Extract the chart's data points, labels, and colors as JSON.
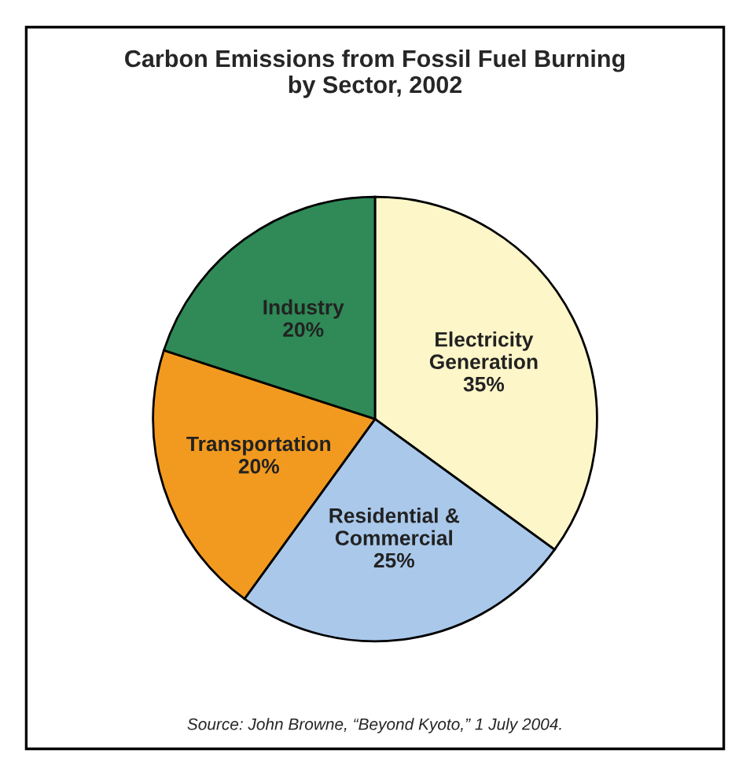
{
  "chart_data": {
    "type": "pie",
    "title": "Carbon Emissions from Fossil Fuel Burning\nby Sector, 2002",
    "categories": [
      "Electricity Generation",
      "Residential & Commercial",
      "Transportation",
      "Industry"
    ],
    "values": [
      35,
      25,
      20,
      20
    ],
    "colors": [
      "#fdf6c8",
      "#a9c8ea",
      "#f29a1f",
      "#2f8a57"
    ],
    "value_labels": [
      "35%",
      "25%",
      "20%",
      "20%"
    ],
    "legend": false,
    "annotations": [
      "Source: John Browne, “Beyond Kyoto,” 1 July 2004."
    ]
  }
}
